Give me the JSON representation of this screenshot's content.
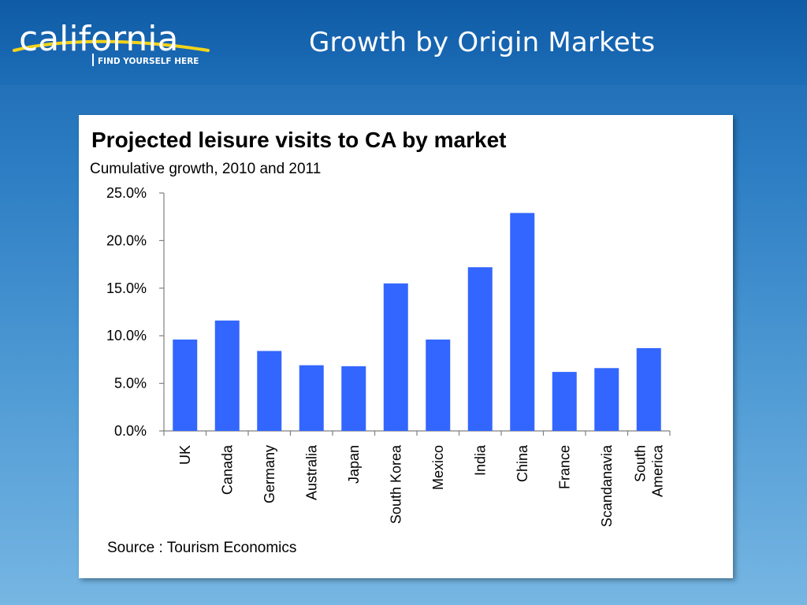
{
  "slide": {
    "title": "Growth by Origin Markets",
    "logo_text": "california",
    "logo_tagline": "FIND YOURSELF HERE"
  },
  "colors": {
    "bar": "#3366ff",
    "logo_swoosh": "#f2d31b",
    "logo_text": "#ffffff"
  },
  "chart_data": {
    "type": "bar",
    "title": "Projected leisure visits to CA by market",
    "subtitle": "Cumulative growth, 2010 and 2011",
    "categories": [
      "UK",
      "Canada",
      "Germany",
      "Australia",
      "Japan",
      "South Korea",
      "Mexico",
      "India",
      "China",
      "France",
      "Scandanavia",
      "South America"
    ],
    "category_lines": [
      [
        "UK"
      ],
      [
        "Canada"
      ],
      [
        "Germany"
      ],
      [
        "Australia"
      ],
      [
        "Japan"
      ],
      [
        "South Korea"
      ],
      [
        "Mexico"
      ],
      [
        "India"
      ],
      [
        "China"
      ],
      [
        "France"
      ],
      [
        "Scandanavia"
      ],
      [
        "South",
        "America"
      ]
    ],
    "values": [
      9.6,
      11.6,
      8.4,
      6.9,
      6.8,
      15.5,
      9.6,
      17.2,
      22.9,
      6.2,
      6.6,
      8.7
    ],
    "ylim": [
      0,
      25
    ],
    "yticks": [
      0,
      5,
      10,
      15,
      20,
      25
    ],
    "ytick_labels": [
      "0.0%",
      "5.0%",
      "10.0%",
      "15.0%",
      "20.0%",
      "25.0%"
    ],
    "xlabel": "",
    "ylabel": "",
    "grid": false,
    "legend": "none",
    "source": "Source : Tourism Economics"
  }
}
